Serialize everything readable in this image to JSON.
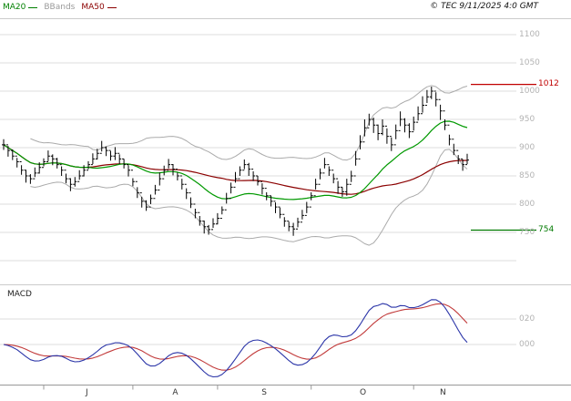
{
  "header": {
    "legend": [
      {
        "label": "MA20",
        "color": "#008000"
      },
      {
        "label": "BBands",
        "color": "#9a9a9a"
      },
      {
        "label": "MA50",
        "color": "#8b0000"
      }
    ],
    "copyright": "© TEC 9/11/2025 4:0 GMT"
  },
  "chart_data": {
    "type": "candlestick",
    "title": "",
    "panels": [
      "price",
      "macd"
    ],
    "months": [
      "J",
      "A",
      "S",
      "O",
      "N"
    ],
    "month_start_indices": [
      9,
      29,
      48,
      69,
      92
    ],
    "price_axis": {
      "ticks": [
        1100,
        1050,
        1000,
        950,
        900,
        850,
        800,
        750
      ],
      "labels": [
        "1100",
        "1050",
        "1000",
        "950",
        "900",
        "850",
        "800",
        "750"
      ],
      "extra_gridlines": [
        700
      ]
    },
    "levels": [
      {
        "name": "resistance",
        "label": "1012",
        "value": 1012,
        "color": "#c00000"
      },
      {
        "name": "support",
        "label": "754",
        "value": 754,
        "color": "#007a00"
      }
    ],
    "overlays": {
      "ma20": {
        "period": 20,
        "color": "#009900"
      },
      "ma50": {
        "period": 50,
        "color": "#8b0000"
      },
      "bbands": {
        "period": 20,
        "mult": 2,
        "color": "#ababab"
      }
    },
    "colors": {
      "bars": "#000000",
      "grid": "#dcdcdc",
      "frame": "#cccccc",
      "axis_line": "#999999",
      "axis_text": "#b3b3b3",
      "month_text": "#333333"
    },
    "series": {
      "high": [
        915,
        903,
        897,
        882,
        869,
        861,
        853,
        865,
        874,
        881,
        895,
        888,
        882,
        867,
        854,
        846,
        848,
        860,
        869,
        876,
        890,
        898,
        912,
        902,
        894,
        901,
        888,
        880,
        869,
        846,
        830,
        813,
        807,
        817,
        834,
        856,
        868,
        880,
        871,
        856,
        845,
        828,
        812,
        792,
        779,
        771,
        763,
        775,
        784,
        796,
        820,
        838,
        857,
        867,
        879,
        873,
        858,
        850,
        837,
        821,
        815,
        803,
        794,
        777,
        769,
        767,
        776,
        790,
        804,
        821,
        845,
        863,
        882,
        867,
        854,
        841,
        830,
        845,
        859,
        894,
        922,
        950,
        960,
        953,
        941,
        950,
        934,
        918,
        941,
        964,
        952,
        943,
        955,
        973,
        991,
        1002,
        1008,
        998,
        976,
        950,
        923,
        907,
        887,
        879,
        889
      ],
      "low": [
        896,
        884,
        878,
        865,
        852,
        838,
        836,
        848,
        854,
        867,
        876,
        869,
        863,
        850,
        837,
        823,
        831,
        843,
        849,
        862,
        871,
        879,
        893,
        885,
        877,
        878,
        871,
        863,
        849,
        832,
        811,
        794,
        788,
        800,
        817,
        833,
        851,
        863,
        851,
        842,
        826,
        809,
        793,
        775,
        762,
        748,
        746,
        758,
        764,
        782,
        801,
        819,
        838,
        850,
        862,
        850,
        841,
        833,
        817,
        807,
        796,
        784,
        775,
        760,
        752,
        744,
        759,
        773,
        784,
        807,
        826,
        844,
        863,
        850,
        837,
        818,
        813,
        815,
        839,
        868,
        897,
        920,
        939,
        926,
        913,
        922,
        907,
        894,
        915,
        938,
        927,
        917,
        930,
        948,
        962,
        979,
        986,
        973,
        949,
        931,
        904,
        887,
        871,
        859,
        871
      ],
      "close": [
        905,
        895,
        885,
        875,
        860,
        850,
        845,
        855,
        865,
        875,
        885,
        880,
        870,
        860,
        845,
        835,
        840,
        850,
        860,
        870,
        880,
        890,
        900,
        895,
        885,
        890,
        880,
        870,
        860,
        840,
        820,
        805,
        795,
        810,
        825,
        845,
        860,
        870,
        862,
        850,
        835,
        820,
        800,
        785,
        770,
        760,
        755,
        765,
        775,
        790,
        810,
        830,
        845,
        860,
        870,
        862,
        850,
        840,
        828,
        815,
        805,
        795,
        782,
        770,
        760,
        756,
        768,
        780,
        795,
        815,
        835,
        855,
        870,
        860,
        845,
        830,
        822,
        835,
        850,
        880,
        910,
        935,
        950,
        940,
        925,
        938,
        920,
        905,
        930,
        950,
        940,
        928,
        945,
        960,
        975,
        990,
        1000,
        985,
        965,
        940,
        915,
        895,
        880,
        870,
        878
      ]
    },
    "macd": {
      "label": "MACD",
      "fast": 12,
      "slow": 26,
      "signal": 9,
      "axis": {
        "ticks": [
          20,
          0
        ],
        "labels": [
          "020",
          "000"
        ]
      },
      "colors": {
        "macd": "#2b35a8",
        "signal": "#c23b3b"
      }
    }
  }
}
